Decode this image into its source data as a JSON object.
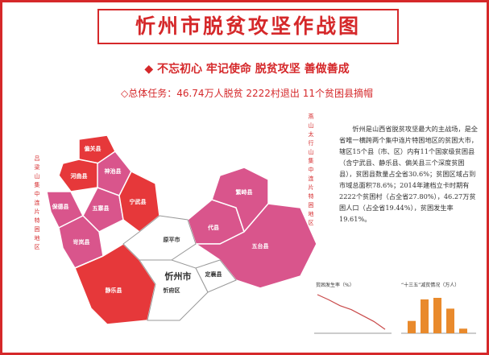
{
  "header": {
    "title": "忻州市脱贫攻坚作战图",
    "slogan": "◆ 不忘初心 牢记使命  脱贫攻坚 善做善成",
    "task": "◇总体任务：46.74万人脱贫 2222村退出 11个贫困县摘帽"
  },
  "side_labels": {
    "left": "吕梁山集中连片特困地区",
    "right": "燕山太行山集中连片特困地区"
  },
  "intro": "忻州是山西省脱贫攻坚最大的主战场，是全省唯一横跨两个集中连片特困地区的贫困大市，辖区15个县（市、区）内有11个国家级贫困县（含宁武县、静乐县、偏关县三个深度贫困县），贫困县数量占全省30.6%；贫困区域占到市域总面积78.6%；2014年建档立卡时期有2222个贫困村（占全省27.80%），46.27万贫困人口（占全省19.44%），贫困发生率19.61%。",
  "map": {
    "city": "忻州市",
    "counties": [
      "偏关县",
      "河曲县",
      "保德县",
      "神池县",
      "五寨县",
      "宁武县",
      "岢岚县",
      "静乐县",
      "原平市",
      "忻府区",
      "定襄县",
      "代县",
      "繁峙县",
      "五台县"
    ]
  },
  "mini_charts": [
    {
      "type": "line",
      "title": "贫困发生率（%）",
      "values": [
        19.6,
        17,
        14,
        12,
        9,
        6,
        2
      ],
      "color": "#c94a4a"
    },
    {
      "type": "bar",
      "title": "“十三五”减贫情况（万人）",
      "values": [
        4,
        11,
        11.5,
        8,
        1.5
      ],
      "color": "#e98a2c"
    }
  ]
}
